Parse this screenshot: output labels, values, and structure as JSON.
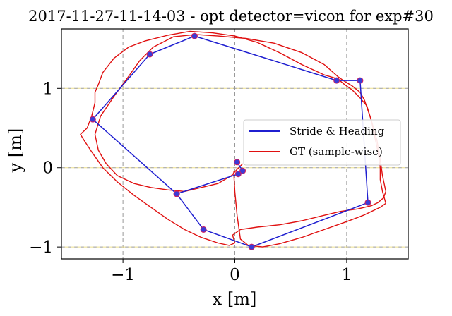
{
  "chart_data": {
    "type": "line",
    "title": "2017-11-27-11-14-03 - opt detector=vicon for exp#30",
    "xlabel": "x [m]",
    "ylabel": "y [m]",
    "xlim": [
      -1.55,
      1.55
    ],
    "ylim": [
      -1.15,
      1.75
    ],
    "xticks": [
      -1,
      0,
      1
    ],
    "yticks": [
      -1,
      0,
      1
    ],
    "xtick_labels": [
      "−1",
      "0",
      "1"
    ],
    "ytick_labels": [
      "−1",
      "0",
      "1"
    ],
    "grid": true,
    "legend_position": "center-right",
    "colors": {
      "stride": "#1f1fd0",
      "gt": "#e01010",
      "marker": "#3b3bd6",
      "marker_edge": "#d02060",
      "grid": "#999999",
      "grid_highlight": "#e8d870"
    },
    "series": [
      {
        "name": "Stride & Heading",
        "marker": "circle",
        "x": [
          0.02,
          0.07,
          0.03,
          -0.52,
          -1.27,
          -0.76,
          -0.36,
          0.91,
          1.12,
          1.19,
          0.15,
          -0.28,
          -0.52
        ],
        "y": [
          0.07,
          -0.04,
          -0.08,
          -0.33,
          0.61,
          1.43,
          1.66,
          1.1,
          1.1,
          -0.44,
          -1.0,
          -0.78,
          -0.33
        ]
      },
      {
        "name": "GT (sample-wise)",
        "x": [
          0.07,
          0.02,
          -0.03,
          -0.15,
          -0.3,
          -0.45,
          -0.6,
          -0.75,
          -0.9,
          -1.05,
          -1.15,
          -1.22,
          -1.25,
          -1.2,
          -1.08,
          -0.95,
          -0.85,
          -0.73,
          -0.55,
          -0.35,
          -0.15,
          0.1,
          0.35,
          0.6,
          0.8,
          0.92,
          0.97,
          1.05,
          1.12,
          1.16,
          1.22,
          1.27,
          1.3,
          1.32,
          1.35,
          1.33,
          1.28,
          1.22,
          1.1,
          0.95,
          0.8,
          0.6,
          0.4,
          0.2,
          0.05,
          -0.02,
          0.0,
          -0.05,
          -0.15,
          -0.3,
          -0.45,
          -0.6,
          -0.75,
          -0.9,
          -1.05,
          -1.18,
          -1.28,
          -1.35,
          -1.38,
          -1.32,
          -1.28,
          -1.25,
          -1.25,
          -1.22,
          -1.18,
          -1.08,
          -0.95,
          -0.8,
          -0.6,
          -0.4,
          -0.2,
          0.0,
          0.2,
          0.4,
          0.6,
          0.8,
          0.92,
          0.98,
          1.05,
          1.12,
          1.18,
          1.22,
          1.25,
          1.28,
          1.3,
          1.3,
          1.32,
          1.35,
          1.3,
          1.15,
          1.0,
          0.8,
          0.6,
          0.4,
          0.25,
          0.12,
          0.05,
          0.02,
          0.0,
          -0.01
        ],
        "y": [
          0.05,
          -0.02,
          -0.1,
          -0.2,
          -0.25,
          -0.3,
          -0.28,
          -0.25,
          -0.2,
          -0.1,
          0.05,
          0.22,
          0.42,
          0.65,
          0.9,
          1.15,
          1.35,
          1.52,
          1.65,
          1.68,
          1.66,
          1.63,
          1.57,
          1.45,
          1.3,
          1.15,
          1.1,
          1.03,
          0.95,
          0.85,
          0.6,
          0.35,
          0.1,
          -0.1,
          -0.3,
          -0.38,
          -0.44,
          -0.48,
          -0.52,
          -0.55,
          -0.6,
          -0.67,
          -0.72,
          -0.75,
          -0.78,
          -0.85,
          -0.95,
          -0.98,
          -0.95,
          -0.88,
          -0.78,
          -0.65,
          -0.5,
          -0.35,
          -0.18,
          0.0,
          0.2,
          0.35,
          0.42,
          0.5,
          0.65,
          0.82,
          0.95,
          1.05,
          1.2,
          1.38,
          1.52,
          1.6,
          1.67,
          1.72,
          1.7,
          1.66,
          1.58,
          1.45,
          1.3,
          1.17,
          1.12,
          1.05,
          0.98,
          0.88,
          0.78,
          0.6,
          0.4,
          0.2,
          0.0,
          -0.15,
          -0.3,
          -0.45,
          -0.5,
          -0.6,
          -0.68,
          -0.78,
          -0.88,
          -0.96,
          -1.0,
          -0.98,
          -0.9,
          -0.6,
          -0.3,
          -0.05
        ]
      }
    ]
  }
}
